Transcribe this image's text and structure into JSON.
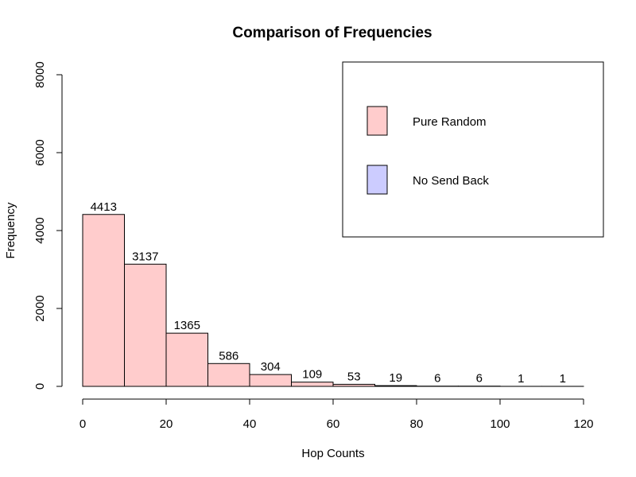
{
  "chart_data": {
    "type": "bar",
    "subtype": "histogram",
    "title": "Comparison of Frequencies",
    "xlabel": "Hop Counts",
    "ylabel": "Frequency",
    "xlim": [
      0,
      120
    ],
    "ylim": [
      0,
      8000
    ],
    "x_ticks": [
      0,
      20,
      40,
      60,
      80,
      100,
      120
    ],
    "y_ticks": [
      0,
      2000,
      4000,
      6000,
      8000
    ],
    "bins": [
      {
        "start": 0,
        "end": 10,
        "value": 4413
      },
      {
        "start": 10,
        "end": 20,
        "value": 3137
      },
      {
        "start": 20,
        "end": 30,
        "value": 1365
      },
      {
        "start": 30,
        "end": 40,
        "value": 586
      },
      {
        "start": 40,
        "end": 50,
        "value": 304
      },
      {
        "start": 50,
        "end": 60,
        "value": 109
      },
      {
        "start": 60,
        "end": 70,
        "value": 53
      },
      {
        "start": 70,
        "end": 80,
        "value": 19
      },
      {
        "start": 80,
        "end": 90,
        "value": 6
      },
      {
        "start": 90,
        "end": 100,
        "value": 6
      },
      {
        "start": 100,
        "end": 110,
        "value": 1
      },
      {
        "start": 110,
        "end": 120,
        "value": 1
      }
    ],
    "series": [
      {
        "name": "Pure Random",
        "color": "#ffcccc"
      },
      {
        "name": "No Send Back",
        "color": "#ccccff"
      }
    ],
    "legend": {
      "position": "top-right"
    },
    "grid": false
  }
}
